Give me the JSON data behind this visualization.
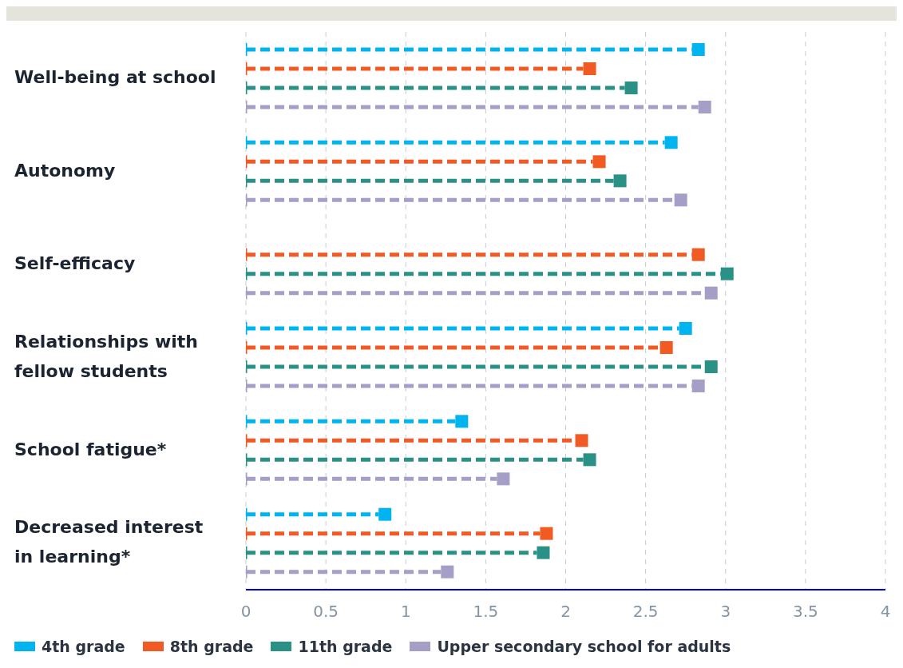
{
  "chart_data": {
    "type": "lollipop",
    "orientation": "horizontal",
    "categories": [
      "Well-being at school",
      "Autonomy",
      "Self-efficacy",
      "Relationships with fellow students",
      "School fatigue*",
      "Decreased interest in learning*"
    ],
    "series": [
      {
        "name": "4th grade",
        "color": "#00b4f0",
        "values": [
          2.83,
          2.66,
          null,
          2.75,
          1.35,
          0.87
        ]
      },
      {
        "name": "8th grade",
        "color": "#f15a22",
        "values": [
          2.15,
          2.21,
          2.83,
          2.63,
          2.1,
          1.88
        ]
      },
      {
        "name": "11th grade",
        "color": "#2a9187",
        "values": [
          2.41,
          2.34,
          3.01,
          2.91,
          2.15,
          1.86
        ]
      },
      {
        "name": "Upper secondary school for adults",
        "color": "#a59fc7",
        "values": [
          2.87,
          2.72,
          2.91,
          2.83,
          1.61,
          1.26
        ]
      }
    ],
    "xlim": [
      0,
      4
    ],
    "xticks": [
      0,
      0.5,
      1,
      1.5,
      2,
      2.5,
      3,
      3.5,
      4
    ],
    "grid": "x",
    "legend": "bottom left",
    "marker": "square",
    "line_style": "dashed"
  }
}
